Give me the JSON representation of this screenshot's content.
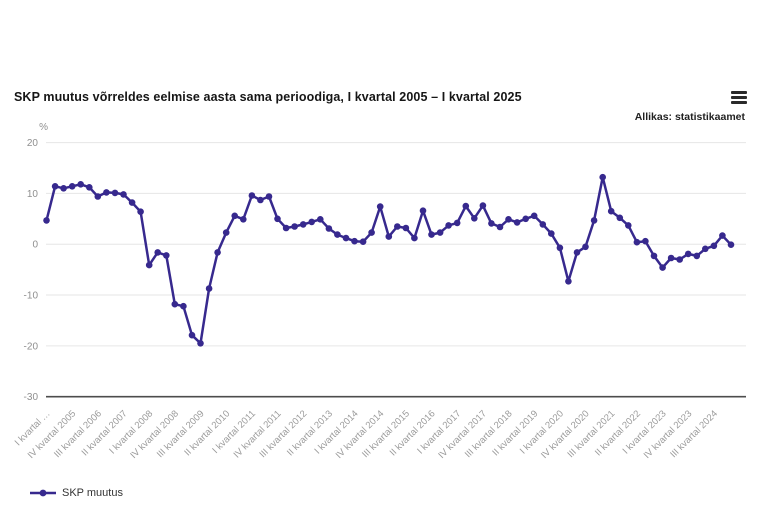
{
  "header": {
    "title": "SKP muutus võrreldes eelmise aasta sama perioodiga, I kvartal 2005 – I kvartal 2025",
    "source": "Allikas: statistikaamet"
  },
  "legend": {
    "series_label": "SKP muutus"
  },
  "colors": {
    "series": "#37298e",
    "grid": "#e6e6e6",
    "axis_line": "#4d4d4d",
    "ytick_text": "#8f8f8f",
    "xtick_text": "#9b9b9b"
  },
  "chart_data": {
    "type": "line",
    "title": "SKP muutus võrreldes eelmise aasta sama perioodiga, I kvartal 2005 – I kvartal 2025",
    "unit": "%",
    "ylabel": "%",
    "xlabel": "",
    "ylim": [
      -30,
      20
    ],
    "yticks": [
      20,
      10,
      0,
      -10,
      -20,
      -30
    ],
    "grid": true,
    "legend_position": "bottom-left",
    "x_tick_every": 3,
    "x_tick_labels": [
      "I kvartal …",
      "IV kvartal 2005",
      "III kvartal 2006",
      "II kvartal 2007",
      "I kvartal 2008",
      "IV kvartal 2008",
      "III kvartal 2009",
      "II kvartal 2010",
      "I kvartal 2011",
      "IV kvartal 2011",
      "III kvartal 2012",
      "II kvartal 2013",
      "I kvartal 2014",
      "IV kvartal 2014",
      "III kvartal 2015",
      "II kvartal 2016",
      "I kvartal 2017",
      "IV kvartal 2017",
      "III kvartal 2018",
      "II kvartal 2019",
      "I kvartal 2020",
      "IV kvartal 2020",
      "III kvartal 2021",
      "II kvartal 2022",
      "I kvartal 2023",
      "IV kvartal 2023",
      "III kvartal 2024"
    ],
    "categories": [
      "I kvartal 2005",
      "II kvartal 2005",
      "III kvartal 2005",
      "IV kvartal 2005",
      "I kvartal 2006",
      "II kvartal 2006",
      "III kvartal 2006",
      "IV kvartal 2006",
      "I kvartal 2007",
      "II kvartal 2007",
      "III kvartal 2007",
      "IV kvartal 2007",
      "I kvartal 2008",
      "II kvartal 2008",
      "III kvartal 2008",
      "IV kvartal 2008",
      "I kvartal 2009",
      "II kvartal 2009",
      "III kvartal 2009",
      "IV kvartal 2009",
      "I kvartal 2010",
      "II kvartal 2010",
      "III kvartal 2010",
      "IV kvartal 2010",
      "I kvartal 2011",
      "II kvartal 2011",
      "III kvartal 2011",
      "IV kvartal 2011",
      "I kvartal 2012",
      "II kvartal 2012",
      "III kvartal 2012",
      "IV kvartal 2012",
      "I kvartal 2013",
      "II kvartal 2013",
      "III kvartal 2013",
      "IV kvartal 2013",
      "I kvartal 2014",
      "II kvartal 2014",
      "III kvartal 2014",
      "IV kvartal 2014",
      "I kvartal 2015",
      "II kvartal 2015",
      "III kvartal 2015",
      "IV kvartal 2015",
      "I kvartal 2016",
      "II kvartal 2016",
      "III kvartal 2016",
      "IV kvartal 2016",
      "I kvartal 2017",
      "II kvartal 2017",
      "III kvartal 2017",
      "IV kvartal 2017",
      "I kvartal 2018",
      "II kvartal 2018",
      "III kvartal 2018",
      "IV kvartal 2018",
      "I kvartal 2019",
      "II kvartal 2019",
      "III kvartal 2019",
      "IV kvartal 2019",
      "I kvartal 2020",
      "II kvartal 2020",
      "III kvartal 2020",
      "IV kvartal 2020",
      "I kvartal 2021",
      "II kvartal 2021",
      "III kvartal 2021",
      "IV kvartal 2021",
      "I kvartal 2022",
      "II kvartal 2022",
      "III kvartal 2022",
      "IV kvartal 2022",
      "I kvartal 2023",
      "II kvartal 2023",
      "III kvartal 2023",
      "IV kvartal 2023",
      "I kvartal 2024",
      "II kvartal 2024",
      "III kvartal 2024",
      "IV kvartal 2024",
      "I kvartal 2025"
    ],
    "series": [
      {
        "name": "SKP muutus",
        "values": [
          4.7,
          11.4,
          11.0,
          11.4,
          11.8,
          11.2,
          9.4,
          10.2,
          10.1,
          9.8,
          8.2,
          6.4,
          -4.1,
          -1.6,
          -2.2,
          -11.8,
          -12.2,
          -17.9,
          -19.5,
          -8.7,
          -1.6,
          2.3,
          5.6,
          4.9,
          9.6,
          8.7,
          9.4,
          5.0,
          3.2,
          3.5,
          3.9,
          4.4,
          4.9,
          3.1,
          1.9,
          1.2,
          0.6,
          0.5,
          2.3,
          7.4,
          1.5,
          3.5,
          3.2,
          1.2,
          6.6,
          1.9,
          2.3,
          3.7,
          4.2,
          7.5,
          5.1,
          7.6,
          4.1,
          3.4,
          4.9,
          4.3,
          5.0,
          5.6,
          3.9,
          2.1,
          -0.7,
          -7.3,
          -1.6,
          -0.5,
          4.7,
          13.2,
          6.5,
          5.2,
          3.7,
          0.4,
          0.6,
          -2.3,
          -4.6,
          -2.7,
          -3.0,
          -1.9,
          -2.3,
          -0.9,
          -0.3,
          1.7,
          -0.1
        ]
      }
    ]
  }
}
